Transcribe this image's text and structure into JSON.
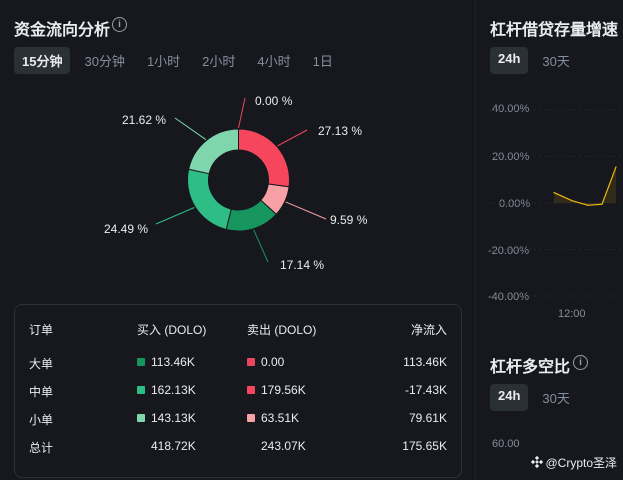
{
  "flow": {
    "title": "资金流向分析",
    "tabs": [
      {
        "label": "15分钟",
        "active": true
      },
      {
        "label": "30分钟",
        "active": false
      },
      {
        "label": "1小时",
        "active": false
      },
      {
        "label": "2小时",
        "active": false
      },
      {
        "label": "4小时",
        "active": false
      },
      {
        "label": "1日",
        "active": false
      }
    ],
    "donut": [
      {
        "name": "大单卖出",
        "value": 0.0,
        "label": "0.00 %",
        "color": "#e8455f"
      },
      {
        "name": "中单卖出",
        "value": 27.13,
        "label": "27.13 %",
        "color": "#f6465d"
      },
      {
        "name": "小单卖出",
        "value": 9.59,
        "label": "9.59 %",
        "color": "#f7a0a6"
      },
      {
        "name": "大单买入",
        "value": 17.14,
        "label": "17.14 %",
        "color": "#16955f"
      },
      {
        "name": "中单买入",
        "value": 24.49,
        "label": "24.49 %",
        "color": "#2ebd85"
      },
      {
        "name": "小单买入",
        "value": 21.62,
        "label": "21.62 %",
        "color": "#7fd6ad"
      }
    ],
    "table": {
      "headers": {
        "order": "订单",
        "buy": "买入 (DOLO)",
        "sell": "卖出 (DOLO)",
        "net": "净流入"
      },
      "rows": [
        {
          "name": "大单",
          "buy": "113.46K",
          "sell": "0.00",
          "net": "113.46K",
          "buy_color": "#16955f",
          "sell_color": "#e8455f"
        },
        {
          "name": "中单",
          "buy": "162.13K",
          "sell": "179.56K",
          "net": "-17.43K",
          "buy_color": "#2ebd85",
          "sell_color": "#f6465d"
        },
        {
          "name": "小单",
          "buy": "143.13K",
          "sell": "63.51K",
          "net": "79.61K",
          "buy_color": "#7fd6ad",
          "sell_color": "#f7a0a6"
        }
      ],
      "total": {
        "name": "总计",
        "buy": "418.72K",
        "sell": "243.07K",
        "net": "175.65K"
      }
    }
  },
  "growth": {
    "title": "杠杆借贷存量增速",
    "tabs": [
      {
        "label": "24h",
        "active": true
      },
      {
        "label": "30天",
        "active": false
      }
    ],
    "yticks": [
      "40.00%",
      "20.00%",
      "0.00%",
      "-20.00%",
      "-40.00%"
    ],
    "xtick": "12:00"
  },
  "chart_data": {
    "type": "line",
    "title": "杠杆借贷存量增速",
    "ylabel": "",
    "xlabel": "",
    "ylim": [
      -40,
      40
    ],
    "x_ticks": [
      "12:00"
    ],
    "series": [
      {
        "values": [
          4.5,
          1.0,
          -1.0,
          -0.5,
          15.5
        ]
      }
    ],
    "line_color": "#f0b90b",
    "grid": true
  },
  "ratio": {
    "title": "杠杆多空比",
    "tabs": [
      {
        "label": "24h",
        "active": true
      },
      {
        "label": "30天",
        "active": false
      }
    ],
    "ytick": "60.00"
  },
  "watermark": {
    "icon": "binance-logo-icon",
    "text": "@Crypto圣泽"
  }
}
